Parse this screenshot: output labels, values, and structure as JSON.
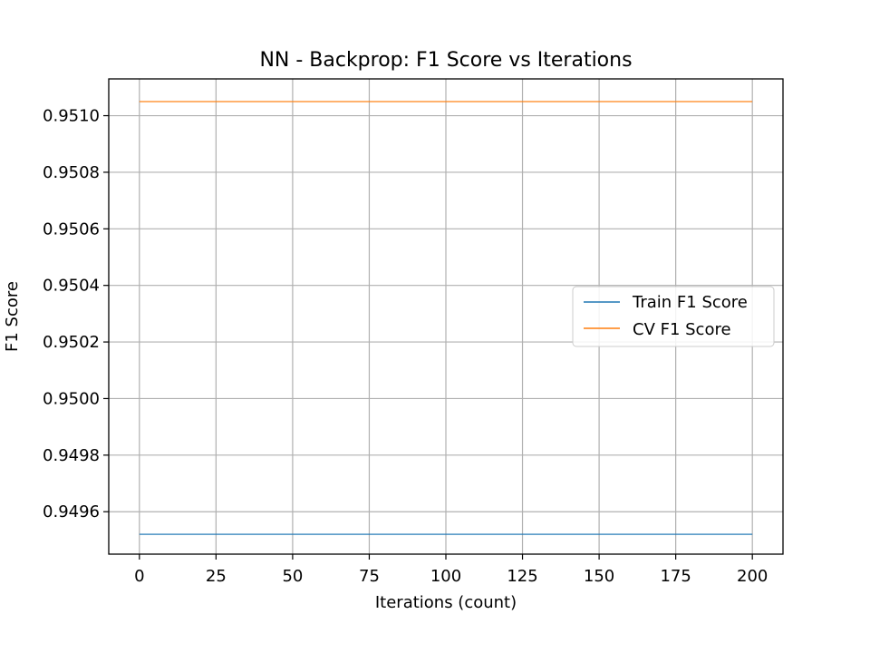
{
  "chart_data": {
    "type": "line",
    "title": "NN - Backprop: F1 Score vs Iterations",
    "xlabel": "Iterations (count)",
    "ylabel": "F1 Score",
    "xlim": [
      -10,
      210
    ],
    "ylim": [
      0.94945,
      0.95113
    ],
    "x_ticks": [
      0,
      25,
      50,
      75,
      100,
      125,
      150,
      175,
      200
    ],
    "y_ticks": [
      0.9496,
      0.9498,
      0.95,
      0.9502,
      0.9504,
      0.9506,
      0.9508,
      0.951
    ],
    "x_tick_labels": [
      "0",
      "25",
      "50",
      "75",
      "100",
      "125",
      "150",
      "175",
      "200"
    ],
    "y_tick_labels": [
      "0.9496",
      "0.9498",
      "0.9500",
      "0.9502",
      "0.9504",
      "0.9506",
      "0.9508",
      "0.9510"
    ],
    "grid": true,
    "legend_position": "center-right",
    "x": [
      0,
      200
    ],
    "series": [
      {
        "name": "Train F1 Score",
        "color": "#1f77b4",
        "values": [
          0.94952,
          0.94952
        ]
      },
      {
        "name": "CV F1 Score",
        "color": "#ff7f0e",
        "values": [
          0.95105,
          0.95105
        ]
      }
    ]
  }
}
